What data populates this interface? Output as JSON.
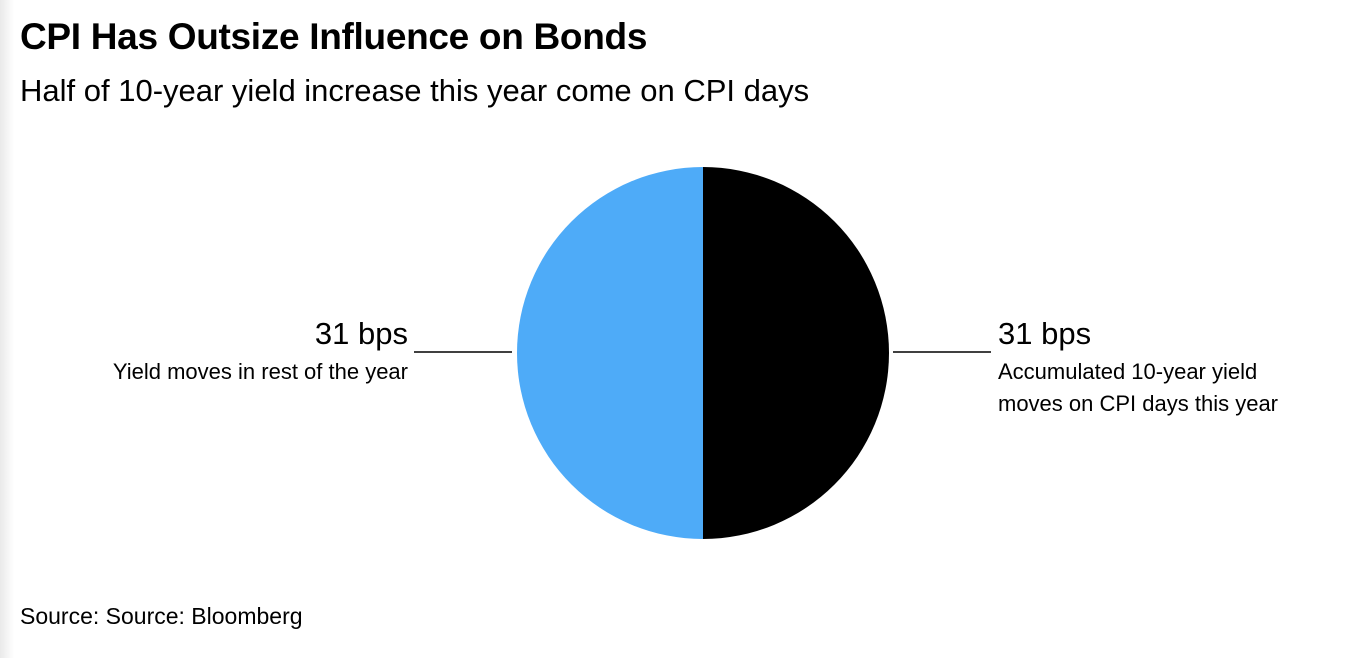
{
  "title": "CPI Has Outsize Influence on Bonds",
  "subtitle": "Half of 10-year yield increase this year come on CPI days",
  "source": "Source: Source: Bloomberg",
  "chart_data": {
    "type": "pie",
    "title": "CPI Has Outsize Influence on Bonds",
    "subtitle": "Half of 10-year yield increase this year come on CPI days",
    "unit": "bps",
    "slices": [
      {
        "value": 31,
        "value_label": "31 bps",
        "description": [
          "Accumulated 10-year yield",
          "moves on CPI days this year"
        ],
        "color": "#000000",
        "side": "right"
      },
      {
        "value": 31,
        "value_label": "31 bps",
        "description": [
          "Yield moves in rest of the year"
        ],
        "color": "#4eabf8",
        "side": "left"
      }
    ],
    "legend": "none",
    "grid": false
  }
}
